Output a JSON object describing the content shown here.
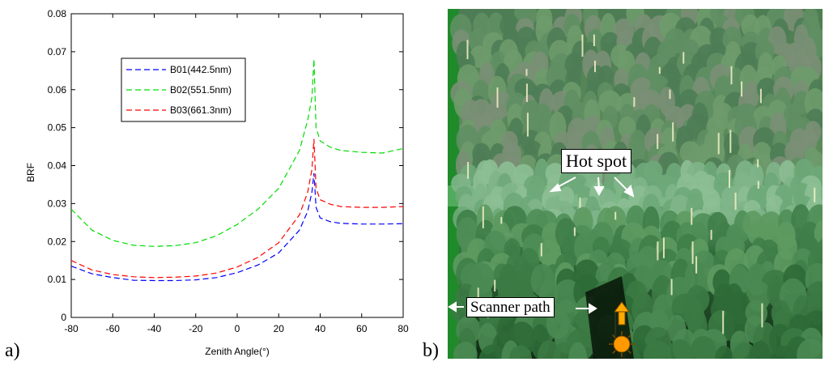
{
  "panels": {
    "a": "a)",
    "b": "b)"
  },
  "chart_data": {
    "type": "line",
    "title": "",
    "xlabel": "Zenith Angle(°)",
    "ylabel": "BRF",
    "xlim": [
      -80,
      80
    ],
    "ylim": [
      0,
      0.08
    ],
    "xticks": [
      "-80",
      "-60",
      "-40",
      "-20",
      "0",
      "20",
      "40",
      "60",
      "80"
    ],
    "yticks": [
      "0",
      "0.01",
      "0.02",
      "0.03",
      "0.04",
      "0.05",
      "0.06",
      "0.07",
      "0.08"
    ],
    "grid": false,
    "legend_position": "upper-left",
    "x": [
      -80,
      -70,
      -60,
      -50,
      -40,
      -30,
      -20,
      -10,
      0,
      10,
      20,
      30,
      34,
      36,
      37,
      38,
      40,
      45,
      50,
      60,
      70,
      80
    ],
    "series": [
      {
        "name": "B01(442.5nm)",
        "color": "#0000ff",
        "values": [
          0.0135,
          0.0115,
          0.0105,
          0.0098,
          0.0097,
          0.0097,
          0.0099,
          0.0105,
          0.0118,
          0.0138,
          0.017,
          0.023,
          0.028,
          0.033,
          0.038,
          0.029,
          0.0262,
          0.0252,
          0.0248,
          0.0246,
          0.0246,
          0.0247
        ]
      },
      {
        "name": "B02(551.5nm)",
        "color": "#00dd00",
        "values": [
          0.0285,
          0.023,
          0.0203,
          0.019,
          0.0187,
          0.0189,
          0.0197,
          0.0215,
          0.0245,
          0.0285,
          0.034,
          0.044,
          0.052,
          0.058,
          0.068,
          0.05,
          0.0465,
          0.0448,
          0.044,
          0.0435,
          0.0433,
          0.0445
        ]
      },
      {
        "name": "B03(661.3nm)",
        "color": "#ff0000",
        "values": [
          0.015,
          0.0125,
          0.0113,
          0.0107,
          0.0105,
          0.0106,
          0.0109,
          0.0117,
          0.0133,
          0.0158,
          0.0197,
          0.027,
          0.033,
          0.039,
          0.047,
          0.034,
          0.031,
          0.0298,
          0.0292,
          0.029,
          0.029,
          0.0292
        ]
      }
    ]
  },
  "image_panel": {
    "hot_spot_label": "Hot spot",
    "scanner_path_label": "Scanner path",
    "arrow_color": "#ffffff",
    "sun_color": "#ff9900",
    "sun_arrow_color": "#ffaa00"
  }
}
